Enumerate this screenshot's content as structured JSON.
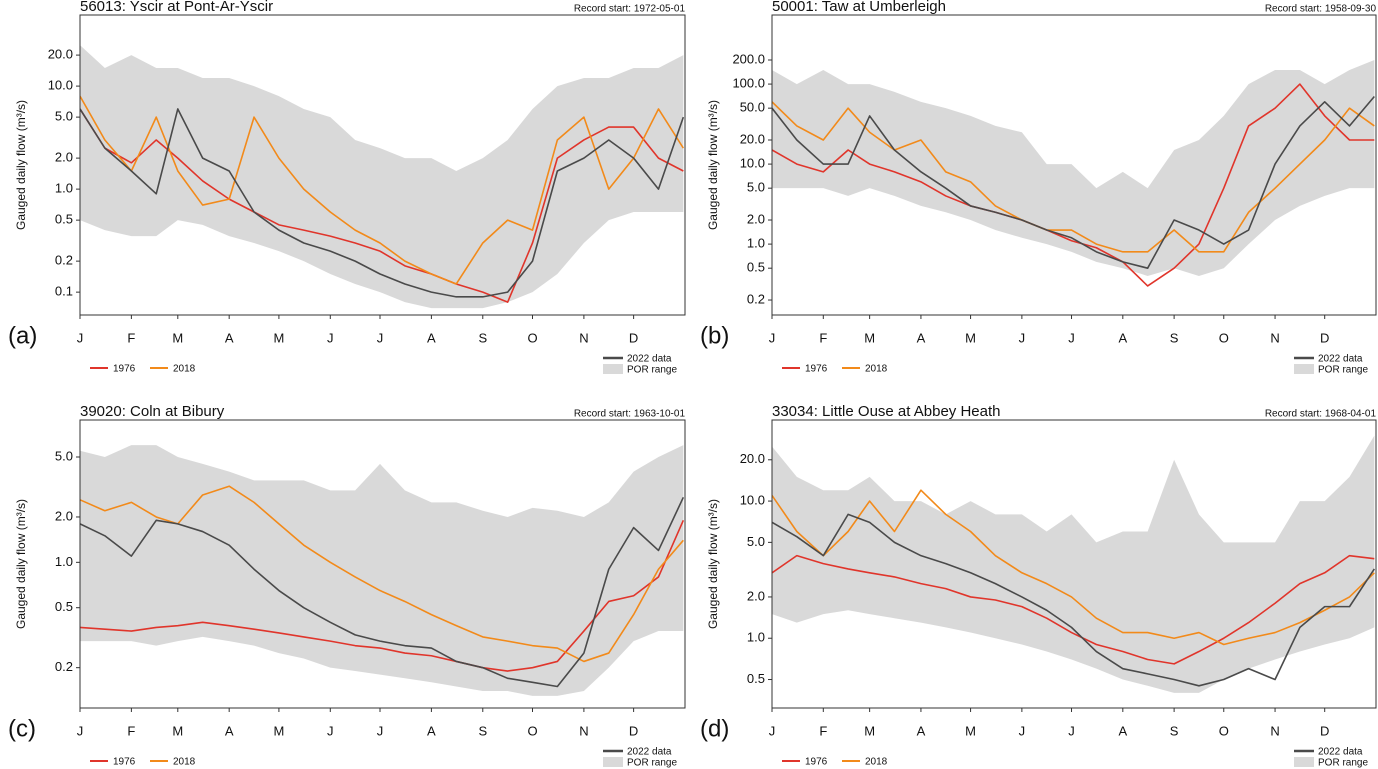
{
  "chart_data": [
    {
      "type": "line",
      "title": "56013: Yscir at Pont-Ar-Yscir",
      "note": "Record start: 1972-05-01",
      "panel_label": "(a)",
      "y_label": "Gauged daily flow (m³/s)",
      "log_scale": true,
      "x": [
        1,
        16,
        32,
        47,
        60,
        75,
        91,
        106,
        121,
        136,
        152,
        167,
        182,
        197,
        213,
        228,
        244,
        259,
        274,
        289,
        305,
        320,
        335,
        350,
        365
      ],
      "xlim": [
        1,
        366
      ],
      "xticks": [
        {
          "value": 1,
          "label": "J"
        },
        {
          "value": 32,
          "label": "F"
        },
        {
          "value": 60,
          "label": "M"
        },
        {
          "value": 91,
          "label": "A"
        },
        {
          "value": 121,
          "label": "M"
        },
        {
          "value": 152,
          "label": "J"
        },
        {
          "value": 182,
          "label": "J"
        },
        {
          "value": 213,
          "label": "A"
        },
        {
          "value": 244,
          "label": "S"
        },
        {
          "value": 274,
          "label": "O"
        },
        {
          "value": 305,
          "label": "N"
        },
        {
          "value": 335,
          "label": "D"
        }
      ],
      "ylim": [
        0.06,
        49
      ],
      "yticks": [
        {
          "value": 0.1,
          "label": "0.1"
        },
        {
          "value": 0.2,
          "label": "0.2"
        },
        {
          "value": 0.5,
          "label": "0.5"
        },
        {
          "value": 1,
          "label": "1.0"
        },
        {
          "value": 2,
          "label": "2.0"
        },
        {
          "value": 5,
          "label": "5.0"
        },
        {
          "value": 10,
          "label": "10.0"
        },
        {
          "value": 20,
          "label": "20.0"
        }
      ],
      "series": [
        {
          "name": "1976",
          "color": "#e0352b",
          "values": [
            6,
            2.5,
            1.8,
            3,
            2,
            1.2,
            0.8,
            0.6,
            0.45,
            0.4,
            0.35,
            0.3,
            0.25,
            0.18,
            0.15,
            0.12,
            0.1,
            0.08,
            0.3,
            2,
            3,
            4,
            4,
            2,
            1.5
          ]
        },
        {
          "name": "2018",
          "color": "#f28a1a",
          "values": [
            8,
            3,
            1.5,
            5,
            1.5,
            0.7,
            0.8,
            5,
            2,
            1,
            0.6,
            0.4,
            0.3,
            0.2,
            0.15,
            0.12,
            0.3,
            0.5,
            0.4,
            3,
            5,
            1,
            2,
            6,
            2.5
          ]
        },
        {
          "name": "2022 data",
          "color": "#4a4a4a",
          "values": [
            6,
            2.5,
            1.5,
            0.9,
            6,
            2,
            1.5,
            0.6,
            0.4,
            0.3,
            0.25,
            0.2,
            0.15,
            0.12,
            0.1,
            0.09,
            0.09,
            0.1,
            0.2,
            1.5,
            2,
            3,
            2,
            1,
            5
          ]
        },
        {
          "name": "POR range",
          "type": "area",
          "color": "#d9d9d9",
          "upper": [
            25,
            15,
            20,
            15,
            15,
            12,
            12,
            10,
            8,
            6,
            5,
            3,
            2.5,
            2,
            2,
            1.5,
            2,
            3,
            6,
            10,
            12,
            12,
            15,
            15,
            20
          ],
          "lower": [
            0.5,
            0.4,
            0.35,
            0.35,
            0.5,
            0.45,
            0.35,
            0.3,
            0.25,
            0.2,
            0.15,
            0.12,
            0.1,
            0.08,
            0.07,
            0.07,
            0.07,
            0.08,
            0.1,
            0.15,
            0.3,
            0.5,
            0.6,
            0.6,
            0.6
          ]
        }
      ]
    },
    {
      "type": "line",
      "title": "50001: Taw at Umberleigh",
      "note": "Record start: 1958-09-30",
      "panel_label": "(b)",
      "y_label": "Gauged daily flow (m³/s)",
      "log_scale": true,
      "x": [
        1,
        16,
        32,
        47,
        60,
        75,
        91,
        106,
        121,
        136,
        152,
        167,
        182,
        197,
        213,
        228,
        244,
        259,
        274,
        289,
        305,
        320,
        335,
        350,
        365
      ],
      "xlim": [
        1,
        366
      ],
      "xticks": [
        {
          "value": 1,
          "label": "J"
        },
        {
          "value": 32,
          "label": "F"
        },
        {
          "value": 60,
          "label": "M"
        },
        {
          "value": 91,
          "label": "A"
        },
        {
          "value": 121,
          "label": "M"
        },
        {
          "value": 152,
          "label": "J"
        },
        {
          "value": 182,
          "label": "J"
        },
        {
          "value": 213,
          "label": "A"
        },
        {
          "value": 244,
          "label": "S"
        },
        {
          "value": 274,
          "label": "O"
        },
        {
          "value": 305,
          "label": "N"
        },
        {
          "value": 335,
          "label": "D"
        }
      ],
      "ylim": [
        0.13,
        730
      ],
      "yticks": [
        {
          "value": 0.2,
          "label": "0.2"
        },
        {
          "value": 0.5,
          "label": "0.5"
        },
        {
          "value": 1,
          "label": "1.0"
        },
        {
          "value": 2,
          "label": "2.0"
        },
        {
          "value": 5,
          "label": "5.0"
        },
        {
          "value": 10,
          "label": "10.0"
        },
        {
          "value": 20,
          "label": "20.0"
        },
        {
          "value": 50,
          "label": "50.0"
        },
        {
          "value": 100,
          "label": "100.0"
        },
        {
          "value": 200,
          "label": "200.0"
        }
      ],
      "series": [
        {
          "name": "1976",
          "color": "#e0352b",
          "values": [
            15,
            10,
            8,
            15,
            10,
            8,
            6,
            4,
            3,
            2.5,
            2,
            1.5,
            1.1,
            0.9,
            0.6,
            0.3,
            0.5,
            1,
            5,
            30,
            50,
            100,
            40,
            20,
            20
          ]
        },
        {
          "name": "2018",
          "color": "#f28a1a",
          "values": [
            60,
            30,
            20,
            50,
            25,
            15,
            20,
            8,
            6,
            3,
            2,
            1.5,
            1.5,
            1,
            0.8,
            0.8,
            1.5,
            0.8,
            0.8,
            2.5,
            5,
            10,
            20,
            50,
            30
          ]
        },
        {
          "name": "2022 data",
          "color": "#4a4a4a",
          "values": [
            50,
            20,
            10,
            10,
            40,
            15,
            8,
            5,
            3,
            2.5,
            2,
            1.5,
            1.2,
            0.8,
            0.6,
            0.5,
            2,
            1.5,
            1,
            1.5,
            10,
            30,
            60,
            30,
            70
          ]
        },
        {
          "name": "POR range",
          "type": "area",
          "color": "#d9d9d9",
          "upper": [
            150,
            100,
            150,
            100,
            100,
            80,
            60,
            50,
            40,
            30,
            25,
            10,
            10,
            5,
            8,
            5,
            15,
            20,
            40,
            100,
            150,
            150,
            100,
            150,
            200
          ],
          "lower": [
            5,
            5,
            5,
            4,
            5,
            4,
            3,
            2.5,
            2,
            1.5,
            1.2,
            1,
            0.8,
            0.6,
            0.5,
            0.4,
            0.5,
            0.4,
            0.5,
            1,
            2,
            3,
            4,
            5,
            5
          ]
        }
      ]
    },
    {
      "type": "line",
      "title": "39020: Coln at Bibury",
      "note": "Record start: 1963-10-01",
      "panel_label": "(c)",
      "y_label": "Gauged daily flow (m³/s)",
      "log_scale": true,
      "x": [
        1,
        16,
        32,
        47,
        60,
        75,
        91,
        106,
        121,
        136,
        152,
        167,
        182,
        197,
        213,
        228,
        244,
        259,
        274,
        289,
        305,
        320,
        335,
        350,
        365
      ],
      "xlim": [
        1,
        366
      ],
      "xticks": [
        {
          "value": 1,
          "label": "J"
        },
        {
          "value": 32,
          "label": "F"
        },
        {
          "value": 60,
          "label": "M"
        },
        {
          "value": 91,
          "label": "A"
        },
        {
          "value": 121,
          "label": "M"
        },
        {
          "value": 152,
          "label": "J"
        },
        {
          "value": 182,
          "label": "J"
        },
        {
          "value": 213,
          "label": "A"
        },
        {
          "value": 244,
          "label": "S"
        },
        {
          "value": 274,
          "label": "O"
        },
        {
          "value": 305,
          "label": "N"
        },
        {
          "value": 335,
          "label": "D"
        }
      ],
      "ylim": [
        0.108,
        8.8
      ],
      "yticks": [
        {
          "value": 0.2,
          "label": "0.2"
        },
        {
          "value": 0.5,
          "label": "0.5"
        },
        {
          "value": 1,
          "label": "1.0"
        },
        {
          "value": 2,
          "label": "2.0"
        },
        {
          "value": 5,
          "label": "5.0"
        }
      ],
      "series": [
        {
          "name": "1976",
          "color": "#e0352b",
          "values": [
            0.37,
            0.36,
            0.35,
            0.37,
            0.38,
            0.4,
            0.38,
            0.36,
            0.34,
            0.32,
            0.3,
            0.28,
            0.27,
            0.25,
            0.24,
            0.22,
            0.2,
            0.19,
            0.2,
            0.22,
            0.35,
            0.55,
            0.6,
            0.8,
            1.9
          ]
        },
        {
          "name": "2018",
          "color": "#f28a1a",
          "values": [
            2.6,
            2.2,
            2.5,
            2,
            1.8,
            2.8,
            3.2,
            2.5,
            1.8,
            1.3,
            1,
            0.8,
            0.65,
            0.55,
            0.45,
            0.38,
            0.32,
            0.3,
            0.28,
            0.27,
            0.22,
            0.25,
            0.45,
            0.9,
            1.4
          ]
        },
        {
          "name": "2022 data",
          "color": "#4a4a4a",
          "values": [
            1.8,
            1.5,
            1.1,
            1.9,
            1.8,
            1.6,
            1.3,
            0.9,
            0.65,
            0.5,
            0.4,
            0.33,
            0.3,
            0.28,
            0.27,
            0.22,
            0.2,
            0.17,
            0.16,
            0.15,
            0.25,
            0.9,
            1.7,
            1.2,
            2.7
          ]
        },
        {
          "name": "POR range",
          "type": "area",
          "color": "#d9d9d9",
          "upper": [
            5.5,
            5,
            6,
            6,
            5,
            4.5,
            4,
            3.5,
            3.5,
            3.5,
            3,
            3,
            4.5,
            3,
            2.5,
            2.5,
            2.2,
            2,
            2.3,
            2.2,
            2,
            2.5,
            4,
            5,
            6
          ],
          "lower": [
            0.3,
            0.3,
            0.3,
            0.28,
            0.3,
            0.32,
            0.3,
            0.28,
            0.25,
            0.23,
            0.2,
            0.19,
            0.18,
            0.17,
            0.16,
            0.15,
            0.14,
            0.14,
            0.13,
            0.13,
            0.14,
            0.2,
            0.3,
            0.35,
            0.35
          ]
        }
      ]
    },
    {
      "type": "line",
      "title": "33034: Little Ouse at Abbey Heath",
      "note": "Record start: 1968-04-01",
      "panel_label": "(d)",
      "y_label": "Gauged daily flow (m³/s)",
      "log_scale": true,
      "x": [
        1,
        16,
        32,
        47,
        60,
        75,
        91,
        106,
        121,
        136,
        152,
        167,
        182,
        197,
        213,
        228,
        244,
        259,
        274,
        289,
        305,
        320,
        335,
        350,
        365
      ],
      "xlim": [
        1,
        366
      ],
      "xticks": [
        {
          "value": 1,
          "label": "J"
        },
        {
          "value": 32,
          "label": "F"
        },
        {
          "value": 60,
          "label": "M"
        },
        {
          "value": 91,
          "label": "A"
        },
        {
          "value": 121,
          "label": "M"
        },
        {
          "value": 152,
          "label": "J"
        },
        {
          "value": 182,
          "label": "J"
        },
        {
          "value": 213,
          "label": "A"
        },
        {
          "value": 244,
          "label": "S"
        },
        {
          "value": 274,
          "label": "O"
        },
        {
          "value": 305,
          "label": "N"
        },
        {
          "value": 335,
          "label": "D"
        }
      ],
      "ylim": [
        0.31,
        39
      ],
      "yticks": [
        {
          "value": 0.5,
          "label": "0.5"
        },
        {
          "value": 1,
          "label": "1.0"
        },
        {
          "value": 2,
          "label": "2.0"
        },
        {
          "value": 5,
          "label": "5.0"
        },
        {
          "value": 10,
          "label": "10.0"
        },
        {
          "value": 20,
          "label": "20.0"
        }
      ],
      "series": [
        {
          "name": "1976",
          "color": "#e0352b",
          "values": [
            3,
            4,
            3.5,
            3.2,
            3,
            2.8,
            2.5,
            2.3,
            2,
            1.9,
            1.7,
            1.4,
            1.1,
            0.9,
            0.8,
            0.7,
            0.65,
            0.8,
            1,
            1.3,
            1.8,
            2.5,
            3,
            4,
            3.8
          ]
        },
        {
          "name": "2018",
          "color": "#f28a1a",
          "values": [
            11,
            6,
            4,
            6,
            10,
            6,
            12,
            8,
            6,
            4,
            3,
            2.5,
            2,
            1.4,
            1.1,
            1.1,
            1,
            1.1,
            0.9,
            1,
            1.1,
            1.3,
            1.6,
            2,
            3
          ]
        },
        {
          "name": "2022 data",
          "color": "#4a4a4a",
          "values": [
            7,
            5.5,
            4,
            8,
            7,
            5,
            4,
            3.5,
            3,
            2.5,
            2,
            1.6,
            1.2,
            0.8,
            0.6,
            0.55,
            0.5,
            0.45,
            0.5,
            0.6,
            0.5,
            1.2,
            1.7,
            1.7,
            3.2
          ]
        },
        {
          "name": "POR range",
          "type": "area",
          "color": "#d9d9d9",
          "upper": [
            25,
            15,
            12,
            12,
            15,
            10,
            10,
            8,
            10,
            8,
            8,
            6,
            8,
            5,
            6,
            6,
            20,
            8,
            5,
            5,
            5,
            10,
            10,
            15,
            30
          ],
          "lower": [
            1.5,
            1.3,
            1.5,
            1.6,
            1.5,
            1.4,
            1.3,
            1.2,
            1.1,
            1,
            0.9,
            0.8,
            0.7,
            0.6,
            0.5,
            0.45,
            0.4,
            0.4,
            0.5,
            0.6,
            0.7,
            0.8,
            0.9,
            1,
            1.2
          ]
        }
      ]
    }
  ]
}
